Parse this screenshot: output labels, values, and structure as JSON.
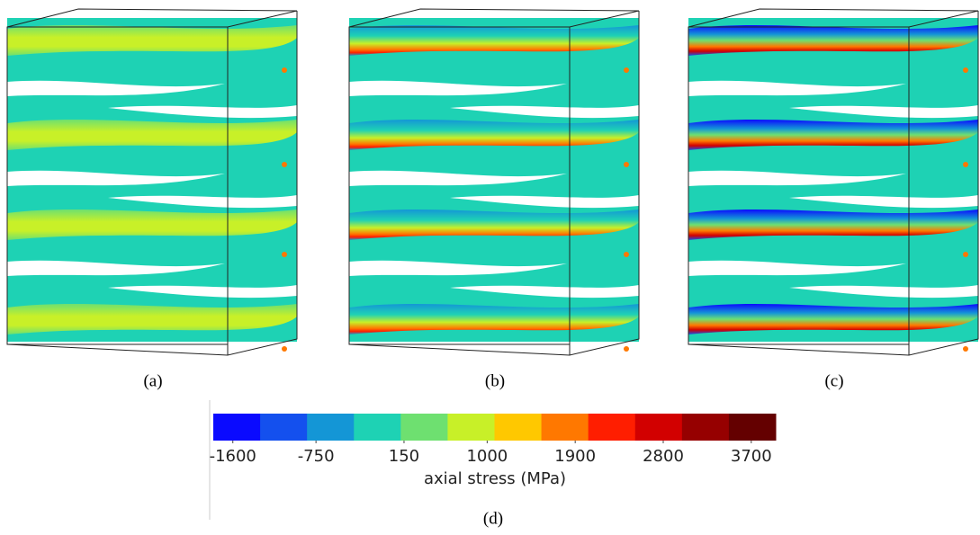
{
  "panels": [
    {
      "label": "(a)"
    },
    {
      "label": "(b)"
    },
    {
      "label": "(c)"
    }
  ],
  "colorbar": {
    "label": "(d)",
    "title": "axial stress (MPa)",
    "range": [
      -1800,
      3950
    ],
    "ticks": [
      -1600,
      -750,
      150,
      1000,
      1900,
      2800,
      3700
    ],
    "colors": [
      "#0a0aff",
      "#1450ee",
      "#1496d6",
      "#1ed2b4",
      "#6ee070",
      "#c8f028",
      "#ffc800",
      "#ff7800",
      "#ff1e00",
      "#d20000",
      "#960000",
      "#640000"
    ]
  }
}
